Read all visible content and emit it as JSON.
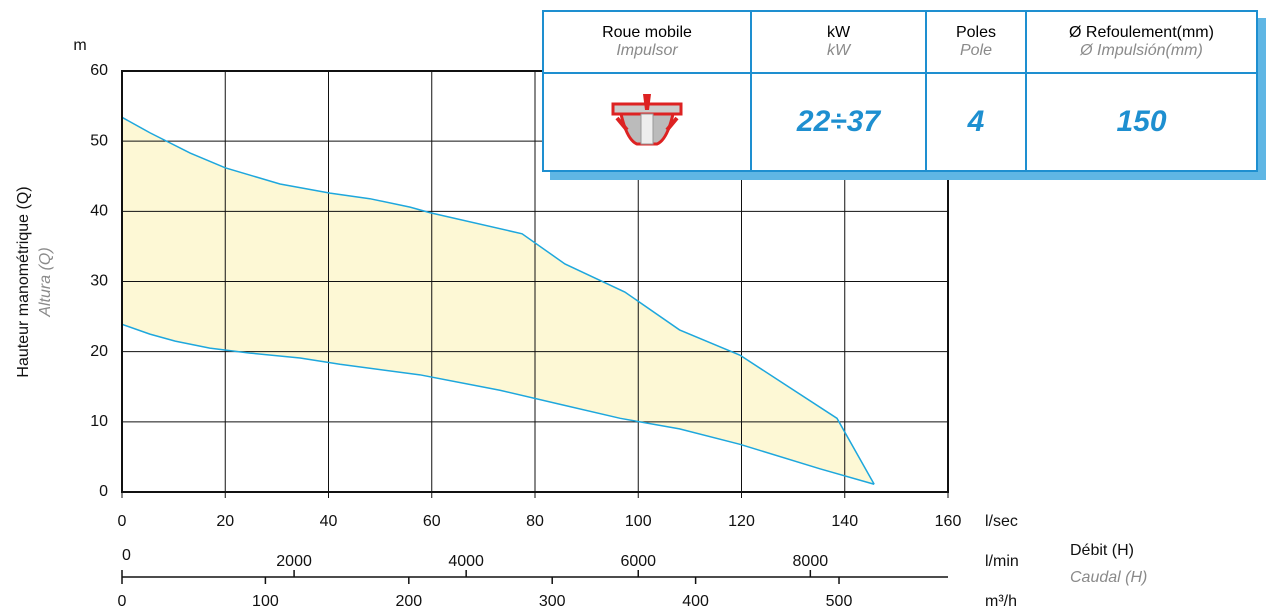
{
  "chart_data": {
    "type": "area_range",
    "y_label": "Hauteur manométrique (Q)",
    "y_label_alt": "Altura (Q)",
    "y_unit": "m",
    "x_unit": "l/sec",
    "x_label": "Débit (H)",
    "x_label_alt": "Caudal (H)",
    "xlim": [
      0,
      160
    ],
    "xticks": [
      0,
      20,
      40,
      60,
      80,
      100,
      120,
      140,
      160
    ],
    "ylim": [
      0,
      60
    ],
    "yticks": [
      0,
      10,
      20,
      30,
      40,
      50,
      60
    ],
    "grid": true,
    "line_color": "#1ea7dd",
    "fill_color": "#fdf8d5",
    "series": [
      {
        "x": [
          0,
          5.4,
          13.2,
          20,
          30.6,
          40.3,
          48,
          55.8,
          59.7,
          77.5,
          85.8,
          97.4,
          108,
          119.7,
          138.5,
          145.7
        ],
        "values": [
          53.4,
          51.2,
          48.3,
          46.2,
          43.9,
          42.6,
          41.8,
          40.6,
          39.8,
          36.8,
          32.5,
          28.5,
          23.1,
          19.5,
          10.5,
          1.1
        ]
      },
      {
        "x": [
          0,
          5.4,
          10.3,
          17,
          24.8,
          34.5,
          42.2,
          57.7,
          73.2,
          84.8,
          96.5,
          108,
          119.7,
          135.2,
          145.7
        ],
        "values": [
          23.9,
          22.5,
          21.5,
          20.5,
          19.8,
          19.1,
          18.2,
          16.7,
          14.5,
          12.5,
          10.5,
          9.0,
          6.8,
          3.3,
          1.1
        ]
      }
    ],
    "secondary_axes": [
      {
        "unit": "l/min",
        "lim": [
          0,
          9600
        ],
        "ticks": [
          0,
          2000,
          4000,
          6000,
          8000
        ]
      },
      {
        "unit": "m³/h",
        "lim": [
          0,
          576
        ],
        "ticks": [
          0,
          100,
          200,
          300,
          400,
          500
        ]
      }
    ]
  },
  "table": {
    "header": [
      [
        "Roue mobile",
        "Impulsor"
      ],
      [
        "kW",
        "kW"
      ],
      [
        "Poles",
        "Pole"
      ],
      [
        "Ø Refoulement(mm)",
        "Ø Impulsión(mm)"
      ]
    ],
    "row": [
      "22÷37",
      "4",
      "150"
    ]
  }
}
